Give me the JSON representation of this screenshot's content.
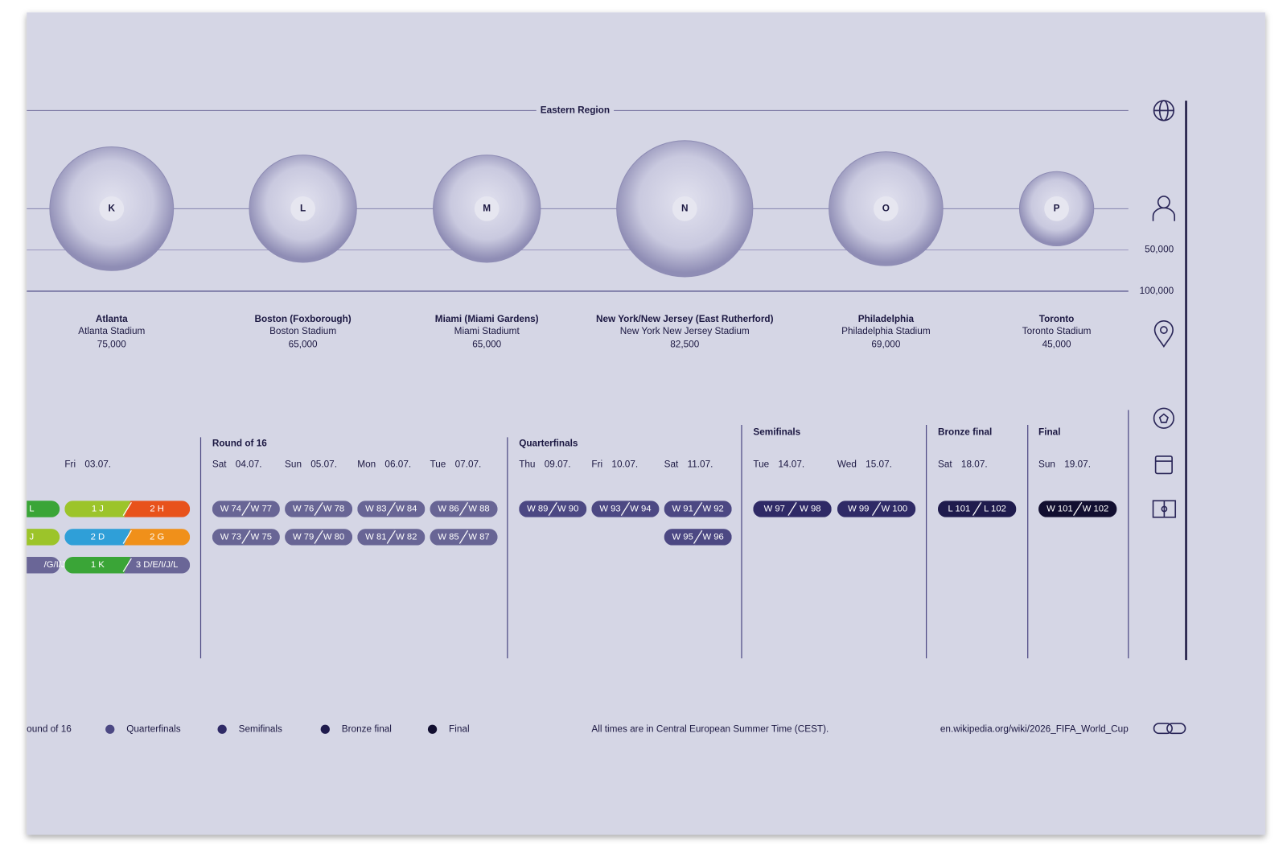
{
  "region": "Eastern Region",
  "scale": {
    "ticks": [
      {
        "value": 50000,
        "label": "50,000"
      },
      {
        "value": 100000,
        "label": "100,000"
      }
    ]
  },
  "venues": [
    {
      "group": "K",
      "city": "Atlanta",
      "stadium": "Atlanta Stadium",
      "capacity": {
        "value": 75000,
        "label": "75,000"
      }
    },
    {
      "group": "L",
      "city": "Boston (Foxborough)",
      "stadium": "Boston Stadium",
      "capacity": {
        "value": 65000,
        "label": "65,000"
      }
    },
    {
      "group": "M",
      "city": "Miami (Miami Gardens)",
      "stadium": "Miami Stadiumt",
      "capacity": {
        "value": 65000,
        "label": "65,000"
      }
    },
    {
      "group": "N",
      "city": "New York/New Jersey (East Rutherford)",
      "stadium": "New York New Jersey Stadium",
      "capacity": {
        "value": 82500,
        "label": "82,500"
      }
    },
    {
      "group": "O",
      "city": "Philadelphia",
      "stadium": "Philadelphia Stadium",
      "capacity": {
        "value": 69000,
        "label": "69,000"
      }
    },
    {
      "group": "P",
      "city": "Toronto",
      "stadium": "Toronto Stadium",
      "capacity": {
        "value": 45000,
        "label": "45,000"
      }
    }
  ],
  "round_of_32": {
    "day": "Fri",
    "date": "03.07.",
    "partial": [
      {
        "text": "L",
        "color": "#3aa537"
      },
      {
        "text": "J",
        "color": "#9cc42a"
      },
      {
        "text": "/G/I/J",
        "color": "#6a6697"
      }
    ],
    "matches": [
      {
        "home": "1 J",
        "away": "2 H",
        "colors": [
          "#9cc42a",
          "#e8521b"
        ]
      },
      {
        "home": "2 D",
        "away": "2 G",
        "colors": [
          "#2f9fd8",
          "#f0901a"
        ]
      },
      {
        "home": "1 K",
        "away": "3 D/E/I/J/L",
        "colors": [
          "#3aa537",
          "#6a6697"
        ]
      }
    ]
  },
  "stages": [
    {
      "title": "Round of 16",
      "color": "#686595",
      "days": [
        {
          "day": "Sat",
          "date": "04.07.",
          "matches": [
            [
              "W 74",
              "W 77"
            ],
            [
              "W 73",
              "W 75"
            ]
          ]
        },
        {
          "day": "Sun",
          "date": "05.07.",
          "matches": [
            [
              "W 76",
              "W 78"
            ],
            [
              "W 79",
              "W 80"
            ]
          ]
        },
        {
          "day": "Mon",
          "date": "06.07.",
          "matches": [
            [
              "W 83",
              "W 84"
            ],
            [
              "W 81",
              "W 82"
            ]
          ]
        },
        {
          "day": "Tue",
          "date": "07.07.",
          "matches": [
            [
              "W 86",
              "W 88"
            ],
            [
              "W 85",
              "W 87"
            ]
          ]
        }
      ]
    },
    {
      "title": "Quarterfinals",
      "color": "#4c4883",
      "days": [
        {
          "day": "Thu",
          "date": "09.07.",
          "matches": [
            [
              "W 89",
              "W 90"
            ]
          ]
        },
        {
          "day": "Fri",
          "date": "10.07.",
          "matches": [
            [
              "W 93",
              "W 94"
            ]
          ]
        },
        {
          "day": "Sat",
          "date": "11.07.",
          "matches": [
            [
              "W 91",
              "W 92"
            ],
            [
              "W 95",
              "W 96"
            ]
          ]
        }
      ]
    },
    {
      "title": "Semifinals",
      "color": "#2f2a66",
      "days": [
        {
          "day": "Tue",
          "date": "14.07.",
          "matches": [
            [
              "W 97",
              "W 98"
            ]
          ]
        },
        {
          "day": "Wed",
          "date": "15.07.",
          "matches": [
            [
              "W 99",
              "W 100"
            ]
          ]
        }
      ]
    },
    {
      "title": "Bronze final",
      "color": "#1f1b4d",
      "days": [
        {
          "day": "Sat",
          "date": "18.07.",
          "matches": [
            [
              "L 101",
              "L 102"
            ]
          ]
        }
      ]
    },
    {
      "title": "Final",
      "color": "#120f30",
      "days": [
        {
          "day": "Sun",
          "date": "19.07.",
          "matches": [
            [
              "W 101",
              "W 102"
            ]
          ]
        }
      ]
    }
  ],
  "legend": [
    {
      "label": "ound of 16",
      "color": "#686595"
    },
    {
      "label": "Quarterfinals",
      "color": "#4c4883"
    },
    {
      "label": "Semifinals",
      "color": "#2f2a66"
    },
    {
      "label": "Bronze final",
      "color": "#1f1b4d"
    },
    {
      "label": "Final",
      "color": "#120f30"
    }
  ],
  "note": "All times are in Central European Summer Time (CEST).",
  "url": "en.wikipedia.org/wiki/2026_FIFA_World_Cup"
}
